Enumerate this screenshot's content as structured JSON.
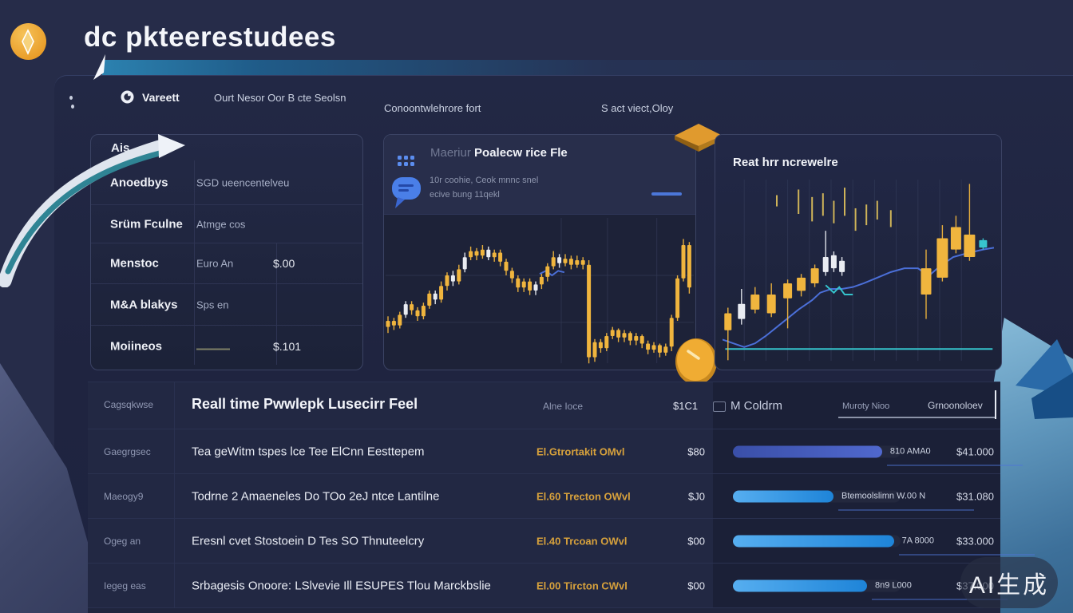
{
  "brand": {
    "title": "dc pkteerestudees",
    "logo_icon": "gold-coin-diamond-icon"
  },
  "nav": {
    "icon": "target-circle-icon",
    "items": [
      {
        "label": "Vareett"
      },
      {
        "label": "Ourt Nesor Oor B cte Seolsn"
      },
      {
        "label": "Conoontwlehrore fort"
      },
      {
        "label": "S act viect,Oloy"
      }
    ]
  },
  "watchlist": {
    "header": "Ais",
    "rows": [
      {
        "name": "Anoedbys",
        "detail": "SGD ueencentelveu",
        "value": ""
      },
      {
        "name": "Srüm Fculne",
        "detail": "Atmge cos",
        "value": ""
      },
      {
        "name": "Menstoc",
        "detail": "Euro An",
        "value": "$.00"
      },
      {
        "name": "M&A blakys",
        "detail": "Sps en",
        "value": ""
      },
      {
        "name": "Moiineos",
        "detail": "—",
        "value": "$.101"
      }
    ]
  },
  "main_chart_panel": {
    "title_prefix": "Maeriur",
    "title": "Poalecw rice Fle",
    "note_line1": "10r coohie, Ceok mnnc snel",
    "note_line2": "ecive bung 11qekl",
    "menu_icon": "dots-grid-menu-icon",
    "chat_icon": "chat-bubble-icon"
  },
  "side_chart_panel": {
    "title": "Reat hrr ncrewelre"
  },
  "bottom_table": {
    "corner_label": "Cagsqkwse",
    "title": "Reall time Pwwlepk Lusecirr Feel",
    "price_col_label": "Alne Ioce",
    "price_col_value": "$1C1",
    "volume_col_label": "M Coldrm",
    "sub_col_1": "Muroty Nioo",
    "sub_col_2": "Grnoonoloev",
    "rows": [
      {
        "label": "Gaegrgsec",
        "description": "Tea geWitm tspes lce Tee ElCnn Eesttepem",
        "ticker": "El.Gtrortakit OMvl",
        "price": "$80",
        "bar_pct": 89,
        "bar_color": [
          "#3A4FA8",
          "#5068CE"
        ],
        "bar_label": "810 AMA0",
        "amount": "$41.000"
      },
      {
        "label": "Maeogy9",
        "description": "Todrne 2 Amaeneles Do TOo 2eJ ntce Lantilne",
        "ticker": "El.60 Trecton OWvl",
        "price": "$J0",
        "bar_pct": 60,
        "bar_color": [
          "#56AEF0",
          "#1E84D8"
        ],
        "bar_label": "Btemoolslimn W.00 N",
        "amount": "$31.080"
      },
      {
        "label": "Ogeg an",
        "description": "Eresnl cvet Stostoein D Tes SO Thnuteelcry",
        "ticker": "El.40 Trcoan OWvl",
        "price": "$00",
        "bar_pct": 96,
        "bar_color": [
          "#56AEF0",
          "#1E84D8"
        ],
        "bar_label": "7A 8000",
        "amount": "$33.000"
      },
      {
        "label": "Iegeg eas",
        "description": "Srbagesis Onoore: LSlvevie Ill ESUPES Tlou Marckbslie",
        "ticker": "El.00 Tircton CWvl",
        "price": "$00",
        "bar_pct": 80,
        "bar_color": [
          "#56AEF0",
          "#1E84D8"
        ],
        "bar_label": "8n9 L000",
        "amount": "$37.000"
      }
    ]
  },
  "watermark": {
    "text": "AI生成"
  },
  "colors": {
    "accent_gold": "#F0B53E",
    "candle_white": "#E9ECF2",
    "teal": "#35C3CC",
    "ma_blue": "#4B6FD8",
    "bar_indigo": "#4257B4",
    "bar_blue": "#2E9BE9"
  },
  "chart_data": [
    {
      "type": "candlestick",
      "title": "Poalecw rice Fle",
      "panel": "main",
      "ylim": [
        0,
        100
      ],
      "x_mode": "index",
      "grid_h": [
        60,
        29
      ],
      "grid_v": [
        57,
        72,
        88
      ],
      "lines": [
        {
          "color": "#4B6FD8",
          "points": [
            [
              50,
              61
            ],
            [
              52,
              63
            ],
            [
              54,
              60
            ],
            [
              56,
              63
            ],
            [
              58,
              62
            ]
          ]
        }
      ],
      "candles": [
        [
          26,
          30,
          33,
          22,
          "g"
        ],
        [
          30,
          27,
          32,
          24,
          "g"
        ],
        [
          27,
          34,
          36,
          25,
          "g"
        ],
        [
          34,
          41,
          43,
          32,
          "w"
        ],
        [
          41,
          37,
          43,
          34,
          "g"
        ],
        [
          37,
          33,
          39,
          30,
          "g"
        ],
        [
          33,
          40,
          42,
          31,
          "g"
        ],
        [
          40,
          48,
          50,
          38,
          "g"
        ],
        [
          48,
          44,
          50,
          41,
          "w"
        ],
        [
          44,
          53,
          56,
          42,
          "g"
        ],
        [
          53,
          60,
          62,
          50,
          "g"
        ],
        [
          60,
          56,
          63,
          53,
          "w"
        ],
        [
          56,
          64,
          67,
          54,
          "g"
        ],
        [
          64,
          72,
          75,
          62,
          "w"
        ],
        [
          72,
          76,
          79,
          70,
          "g"
        ],
        [
          76,
          73,
          78,
          70,
          "g"
        ],
        [
          73,
          77,
          80,
          71,
          "g"
        ],
        [
          77,
          72,
          79,
          70,
          "w"
        ],
        [
          72,
          75,
          77,
          69,
          "g"
        ],
        [
          75,
          69,
          77,
          66,
          "g"
        ],
        [
          69,
          63,
          71,
          60,
          "g"
        ],
        [
          63,
          58,
          65,
          55,
          "g"
        ],
        [
          58,
          52,
          60,
          49,
          "g"
        ],
        [
          52,
          56,
          58,
          49,
          "g"
        ],
        [
          56,
          50,
          58,
          47,
          "g"
        ],
        [
          50,
          54,
          56,
          47,
          "w"
        ],
        [
          54,
          59,
          61,
          51,
          "g"
        ],
        [
          59,
          66,
          68,
          56,
          "g"
        ],
        [
          66,
          72,
          76,
          64,
          "g"
        ],
        [
          72,
          68,
          74,
          65,
          "w"
        ],
        [
          68,
          71,
          74,
          66,
          "g"
        ],
        [
          71,
          67,
          73,
          64,
          "g"
        ],
        [
          67,
          70,
          73,
          65,
          "g"
        ],
        [
          70,
          67,
          72,
          64,
          "g"
        ],
        [
          67,
          6,
          70,
          2,
          "g"
        ],
        [
          6,
          16,
          18,
          3,
          "g"
        ],
        [
          16,
          12,
          18,
          9,
          "g"
        ],
        [
          12,
          20,
          22,
          10,
          "g"
        ],
        [
          20,
          24,
          26,
          18,
          "g"
        ],
        [
          24,
          19,
          25,
          16,
          "g"
        ],
        [
          19,
          22,
          24,
          16,
          "g"
        ],
        [
          22,
          17,
          23,
          14,
          "g"
        ],
        [
          17,
          20,
          22,
          14,
          "g"
        ],
        [
          20,
          15,
          21,
          12,
          "g"
        ],
        [
          15,
          11,
          17,
          8,
          "g"
        ],
        [
          11,
          14,
          16,
          9,
          "g"
        ],
        [
          14,
          9,
          15,
          6,
          "g"
        ],
        [
          9,
          13,
          15,
          7,
          "g"
        ],
        [
          13,
          32,
          34,
          10,
          "g"
        ],
        [
          32,
          58,
          60,
          30,
          "g"
        ],
        [
          58,
          80,
          84,
          56,
          "g"
        ],
        [
          80,
          52,
          82,
          48,
          "g"
        ]
      ]
    },
    {
      "type": "candlestick",
      "title": "Reat hrr ncrewelre",
      "panel": "side",
      "ylim": [
        0,
        100
      ],
      "x_mode": "explicit",
      "grid_v": [
        8,
        16,
        24,
        32,
        40,
        48,
        56,
        64,
        72,
        80,
        88
      ],
      "baseline": 8,
      "lines": [
        {
          "color": "#4B6FD8",
          "points": [
            [
              0,
              13
            ],
            [
              4,
              11
            ],
            [
              8,
              9
            ],
            [
              12,
              11
            ],
            [
              16,
              15
            ],
            [
              22,
              22
            ],
            [
              28,
              29
            ],
            [
              33,
              34
            ],
            [
              36,
              38
            ],
            [
              40,
              40
            ],
            [
              44,
              40
            ],
            [
              48,
              41
            ],
            [
              52,
              43
            ],
            [
              57,
              46
            ],
            [
              62,
              49
            ],
            [
              67,
              51
            ],
            [
              72,
              51
            ],
            [
              76,
              47
            ],
            [
              80,
              52
            ],
            [
              85,
              57
            ],
            [
              90,
              59
            ],
            [
              96,
              61
            ],
            [
              100,
              62
            ]
          ]
        },
        {
          "color": "#35C3CC",
          "points": [
            [
              38,
              42
            ],
            [
              41,
              38
            ],
            [
              43,
              41
            ],
            [
              45,
              37
            ],
            [
              48,
              37
            ]
          ]
        }
      ],
      "float_wicks": [
        [
          20,
          84,
          90
        ],
        [
          28,
          80,
          93
        ],
        [
          33,
          76,
          89
        ],
        [
          37,
          79,
          91
        ],
        [
          41,
          75,
          87
        ],
        [
          45,
          79,
          94
        ],
        [
          49,
          71,
          83
        ],
        [
          53,
          74,
          85
        ],
        [
          57,
          77,
          87
        ],
        [
          62,
          73,
          82
        ]
      ],
      "candles": [
        [
          2,
          18,
          27,
          30,
          2,
          "g",
          9
        ],
        [
          7,
          24,
          32,
          40,
          21,
          "w",
          9
        ],
        [
          12,
          29,
          37,
          41,
          27,
          "g",
          11
        ],
        [
          18,
          27,
          37,
          43,
          25,
          "g",
          11
        ],
        [
          24,
          35,
          43,
          45,
          19,
          "g",
          11
        ],
        [
          29,
          39,
          46,
          48,
          36,
          "g",
          11
        ],
        [
          34,
          43,
          51,
          53,
          41,
          "g",
          10
        ],
        [
          38,
          49,
          57,
          71,
          47,
          "w",
          7
        ],
        [
          41,
          51,
          58,
          60,
          49,
          "w",
          7
        ],
        [
          44,
          49,
          55,
          57,
          47,
          "w",
          7
        ],
        [
          75,
          37,
          51,
          61,
          24,
          "g",
          13
        ],
        [
          81,
          46,
          67,
          74,
          44,
          "g",
          14
        ],
        [
          86,
          61,
          73,
          79,
          59,
          "g",
          13
        ],
        [
          91,
          57,
          69,
          96,
          55,
          "g",
          14
        ],
        [
          96,
          62,
          66,
          67,
          61,
          "t",
          10
        ]
      ]
    }
  ]
}
